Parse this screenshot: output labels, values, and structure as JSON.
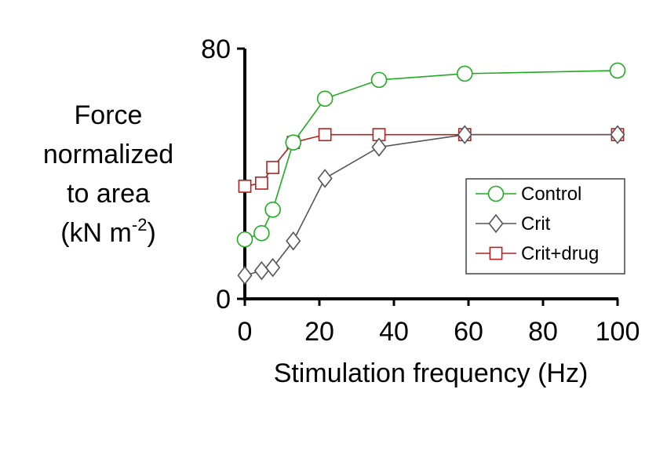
{
  "chart_data": {
    "type": "line",
    "title": "",
    "xlabel": "Stimulation frequency (Hz)",
    "ylabel": {
      "line1": "Force",
      "line2": "normalized",
      "line3": "to area",
      "line4_prefix": "(kN m",
      "line4_sup": "-2",
      "line4_suffix": ")"
    },
    "xlim": [
      0,
      100
    ],
    "ylim": [
      0,
      80
    ],
    "xticks": [
      "0",
      "20",
      "40",
      "60",
      "80",
      "100"
    ],
    "xtick_values": [
      0,
      20,
      40,
      60,
      80,
      100
    ],
    "yticks": [
      "0",
      "80"
    ],
    "ytick_values": [
      0,
      80
    ],
    "grid": false,
    "legend_position": "bottom-right",
    "series": [
      {
        "name": "Control",
        "color": "#22aa22",
        "marker": "circle",
        "x": [
          0,
          4.5,
          7.5,
          13,
          21.5,
          36,
          59,
          100
        ],
        "y": [
          19,
          21,
          28.5,
          50,
          64,
          70,
          72,
          73
        ]
      },
      {
        "name": "Crit",
        "color": "#555555",
        "marker": "diamond",
        "x": [
          0,
          4.5,
          7.5,
          13,
          21.5,
          36,
          59,
          100
        ],
        "y": [
          7.5,
          9,
          10,
          18.5,
          38.5,
          48.5,
          52.5,
          52.5
        ]
      },
      {
        "name": "Crit+drug",
        "color": "#b22222",
        "marker": "square",
        "x": [
          0,
          4.5,
          7.5,
          13,
          21.5,
          36,
          59,
          100
        ],
        "y": [
          36,
          37,
          42,
          50,
          52.5,
          52.5,
          52.5,
          52.5
        ]
      }
    ]
  }
}
